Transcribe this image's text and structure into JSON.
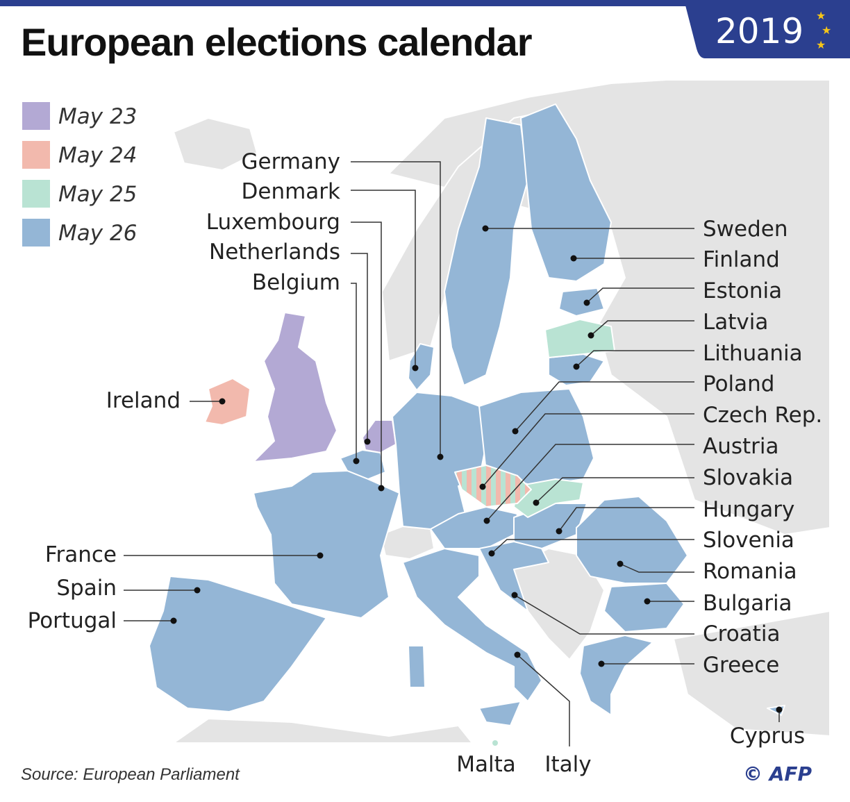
{
  "title": "European elections calendar",
  "year": "2019",
  "colors": {
    "May 23": "#b3a9d4",
    "May 24": "#f2b9ad",
    "May 25": "#b9e3d3",
    "May 26": "#94b6d6",
    "non_eu": "#e4e4e4",
    "brand": "#2b3f8f",
    "star": "#f5c518"
  },
  "legend": [
    {
      "label": "May 23",
      "color": "#b3a9d4"
    },
    {
      "label": "May 24",
      "color": "#f2b9ad"
    },
    {
      "label": "May 25",
      "color": "#b9e3d3"
    },
    {
      "label": "May 26",
      "color": "#94b6d6"
    }
  ],
  "countries": {
    "germany": "Germany",
    "denmark": "Denmark",
    "luxembourg": "Luxembourg",
    "netherlands": "Netherlands",
    "belgium": "Belgium",
    "ireland": "Ireland",
    "france": "France",
    "spain": "Spain",
    "portugal": "Portugal",
    "sweden": "Sweden",
    "finland": "Finland",
    "estonia": "Estonia",
    "latvia": "Latvia",
    "lithuania": "Lithuania",
    "poland": "Poland",
    "czech": "Czech Rep.",
    "austria": "Austria",
    "slovakia": "Slovakia",
    "hungary": "Hungary",
    "slovenia": "Slovenia",
    "romania": "Romania",
    "bulgaria": "Bulgaria",
    "croatia": "Croatia",
    "greece": "Greece",
    "cyprus": "Cyprus",
    "malta": "Malta",
    "italy": "Italy",
    "uk": "",
    "netherlands_dates": ""
  },
  "source": "Source: European Parliament",
  "credit": "© AFP"
}
